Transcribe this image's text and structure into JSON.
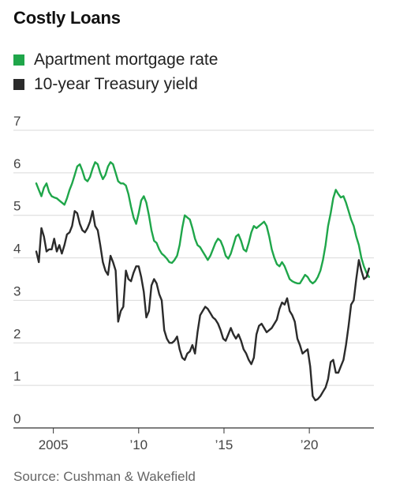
{
  "title": "Costly Loans",
  "source": "Source: Cushman & Wakefield",
  "chart_data": {
    "type": "line",
    "title": "Costly Loans",
    "xlabel": "",
    "ylabel": "",
    "xlim": [
      2004.0,
      2023.6
    ],
    "ylim": [
      0,
      7
    ],
    "yticks": [
      0,
      1,
      2,
      3,
      4,
      5,
      6,
      7
    ],
    "ytick_labels": [
      "0",
      "1",
      "2",
      "3",
      "4",
      "5",
      "6",
      "7"
    ],
    "xticks": [
      2005,
      2010,
      2015,
      2020
    ],
    "xtick_labels": [
      "2005",
      "’10",
      "’15",
      "’20"
    ],
    "grid": "horizontal",
    "legend": "top-left",
    "series": [
      {
        "name": "Apartment mortgage rate",
        "color": "#1fa64a",
        "x": [
          2004.0,
          2004.15,
          2004.3,
          2004.45,
          2004.6,
          2004.75,
          2004.9,
          2005.05,
          2005.2,
          2005.35,
          2005.5,
          2005.65,
          2005.8,
          2005.95,
          2006.1,
          2006.25,
          2006.4,
          2006.55,
          2006.7,
          2006.85,
          2007.0,
          2007.15,
          2007.3,
          2007.45,
          2007.6,
          2007.75,
          2007.9,
          2008.05,
          2008.2,
          2008.35,
          2008.5,
          2008.65,
          2008.8,
          2008.95,
          2009.1,
          2009.25,
          2009.4,
          2009.55,
          2009.7,
          2009.85,
          2010.0,
          2010.15,
          2010.3,
          2010.45,
          2010.6,
          2010.75,
          2010.9,
          2011.05,
          2011.2,
          2011.35,
          2011.5,
          2011.65,
          2011.8,
          2011.95,
          2012.1,
          2012.25,
          2012.4,
          2012.55,
          2012.7,
          2012.85,
          2013.0,
          2013.15,
          2013.3,
          2013.45,
          2013.6,
          2013.75,
          2013.9,
          2014.05,
          2014.2,
          2014.35,
          2014.5,
          2014.65,
          2014.8,
          2014.95,
          2015.1,
          2015.25,
          2015.4,
          2015.55,
          2015.7,
          2015.85,
          2016.0,
          2016.15,
          2016.3,
          2016.45,
          2016.6,
          2016.75,
          2016.9,
          2017.05,
          2017.2,
          2017.35,
          2017.5,
          2017.65,
          2017.8,
          2017.95,
          2018.1,
          2018.25,
          2018.4,
          2018.55,
          2018.7,
          2018.85,
          2019.0,
          2019.15,
          2019.3,
          2019.45,
          2019.6,
          2019.75,
          2019.9,
          2020.05,
          2020.2,
          2020.35,
          2020.5,
          2020.65,
          2020.8,
          2020.95,
          2021.1,
          2021.25,
          2021.4,
          2021.55,
          2021.7,
          2021.85,
          2022.0,
          2022.15,
          2022.3,
          2022.45,
          2022.6,
          2022.75,
          2022.9,
          2023.05,
          2023.2,
          2023.35,
          2023.5
        ],
        "values": [
          5.75,
          5.6,
          5.45,
          5.65,
          5.75,
          5.55,
          5.45,
          5.42,
          5.4,
          5.35,
          5.3,
          5.25,
          5.4,
          5.6,
          5.75,
          5.95,
          6.15,
          6.2,
          6.05,
          5.85,
          5.8,
          5.9,
          6.1,
          6.25,
          6.2,
          6.0,
          5.85,
          5.95,
          6.15,
          6.25,
          6.2,
          6.0,
          5.8,
          5.75,
          5.75,
          5.7,
          5.5,
          5.2,
          4.95,
          4.8,
          5.05,
          5.35,
          5.45,
          5.3,
          5.0,
          4.65,
          4.4,
          4.35,
          4.2,
          4.1,
          4.05,
          3.98,
          3.9,
          3.88,
          3.95,
          4.05,
          4.3,
          4.7,
          5.0,
          4.95,
          4.9,
          4.7,
          4.45,
          4.3,
          4.25,
          4.15,
          4.05,
          3.95,
          4.05,
          4.2,
          4.35,
          4.45,
          4.4,
          4.25,
          4.05,
          3.98,
          4.1,
          4.3,
          4.5,
          4.55,
          4.4,
          4.2,
          4.15,
          4.35,
          4.6,
          4.75,
          4.7,
          4.75,
          4.8,
          4.85,
          4.75,
          4.5,
          4.2,
          4.0,
          3.85,
          3.8,
          3.9,
          3.8,
          3.65,
          3.5,
          3.45,
          3.42,
          3.4,
          3.4,
          3.5,
          3.6,
          3.55,
          3.45,
          3.4,
          3.45,
          3.55,
          3.7,
          3.95,
          4.3,
          4.75,
          5.05,
          5.4,
          5.6,
          5.5,
          5.42,
          5.45,
          5.3,
          5.1,
          4.9,
          4.75,
          4.5,
          4.3,
          4.0,
          3.8,
          3.65,
          3.55
        ]
      },
      {
        "name": "10-year Treasury yield",
        "color": "#2b2b2b",
        "x": [
          2004.0,
          2004.15,
          2004.3,
          2004.45,
          2004.6,
          2004.75,
          2004.9,
          2005.05,
          2005.2,
          2005.35,
          2005.5,
          2005.65,
          2005.8,
          2005.95,
          2006.1,
          2006.25,
          2006.4,
          2006.55,
          2006.7,
          2006.85,
          2007.0,
          2007.15,
          2007.3,
          2007.45,
          2007.6,
          2007.75,
          2007.9,
          2008.05,
          2008.2,
          2008.35,
          2008.5,
          2008.65,
          2008.8,
          2008.95,
          2009.1,
          2009.25,
          2009.4,
          2009.55,
          2009.7,
          2009.85,
          2010.0,
          2010.15,
          2010.3,
          2010.45,
          2010.6,
          2010.75,
          2010.9,
          2011.05,
          2011.2,
          2011.35,
          2011.5,
          2011.65,
          2011.8,
          2011.95,
          2012.1,
          2012.25,
          2012.4,
          2012.55,
          2012.7,
          2012.85,
          2013.0,
          2013.15,
          2013.3,
          2013.45,
          2013.6,
          2013.75,
          2013.9,
          2014.05,
          2014.2,
          2014.35,
          2014.5,
          2014.65,
          2014.8,
          2014.95,
          2015.1,
          2015.25,
          2015.4,
          2015.55,
          2015.7,
          2015.85,
          2016.0,
          2016.15,
          2016.3,
          2016.45,
          2016.6,
          2016.75,
          2016.9,
          2017.05,
          2017.2,
          2017.35,
          2017.5,
          2017.65,
          2017.8,
          2017.95,
          2018.1,
          2018.25,
          2018.4,
          2018.55,
          2018.7,
          2018.85,
          2019.0,
          2019.15,
          2019.3,
          2019.45,
          2019.6,
          2019.75,
          2019.9,
          2020.05,
          2020.2,
          2020.35,
          2020.5,
          2020.65,
          2020.8,
          2020.95,
          2021.1,
          2021.25,
          2021.4,
          2021.55,
          2021.7,
          2021.85,
          2022.0,
          2022.15,
          2022.3,
          2022.45,
          2022.6,
          2022.75,
          2022.9,
          2023.05,
          2023.2,
          2023.35,
          2023.5
        ],
        "values": [
          4.15,
          3.9,
          4.7,
          4.5,
          4.15,
          4.2,
          4.2,
          4.45,
          4.15,
          4.3,
          4.1,
          4.3,
          4.55,
          4.6,
          4.75,
          5.1,
          5.05,
          4.8,
          4.65,
          4.6,
          4.7,
          4.85,
          5.1,
          4.75,
          4.65,
          4.3,
          3.9,
          3.7,
          3.6,
          4.05,
          3.9,
          3.7,
          2.5,
          2.75,
          2.85,
          3.7,
          3.5,
          3.45,
          3.65,
          3.8,
          3.8,
          3.55,
          3.2,
          2.6,
          2.75,
          3.35,
          3.5,
          3.4,
          3.15,
          3.0,
          2.3,
          2.1,
          2.0,
          2.0,
          2.05,
          2.15,
          1.85,
          1.65,
          1.6,
          1.75,
          1.8,
          1.95,
          1.75,
          2.25,
          2.65,
          2.75,
          2.85,
          2.8,
          2.7,
          2.6,
          2.55,
          2.45,
          2.3,
          2.1,
          2.05,
          2.2,
          2.35,
          2.2,
          2.1,
          2.2,
          2.05,
          1.85,
          1.75,
          1.6,
          1.5,
          1.65,
          2.2,
          2.4,
          2.45,
          2.35,
          2.25,
          2.3,
          2.35,
          2.45,
          2.55,
          2.8,
          2.95,
          2.9,
          3.05,
          2.75,
          2.65,
          2.5,
          2.1,
          1.95,
          1.75,
          1.8,
          1.85,
          1.45,
          0.75,
          0.65,
          0.68,
          0.75,
          0.85,
          0.95,
          1.15,
          1.55,
          1.6,
          1.3,
          1.3,
          1.45,
          1.6,
          1.95,
          2.4,
          2.9,
          3.0,
          3.5,
          3.95,
          3.7,
          3.5,
          3.55,
          3.75
        ]
      }
    ]
  }
}
